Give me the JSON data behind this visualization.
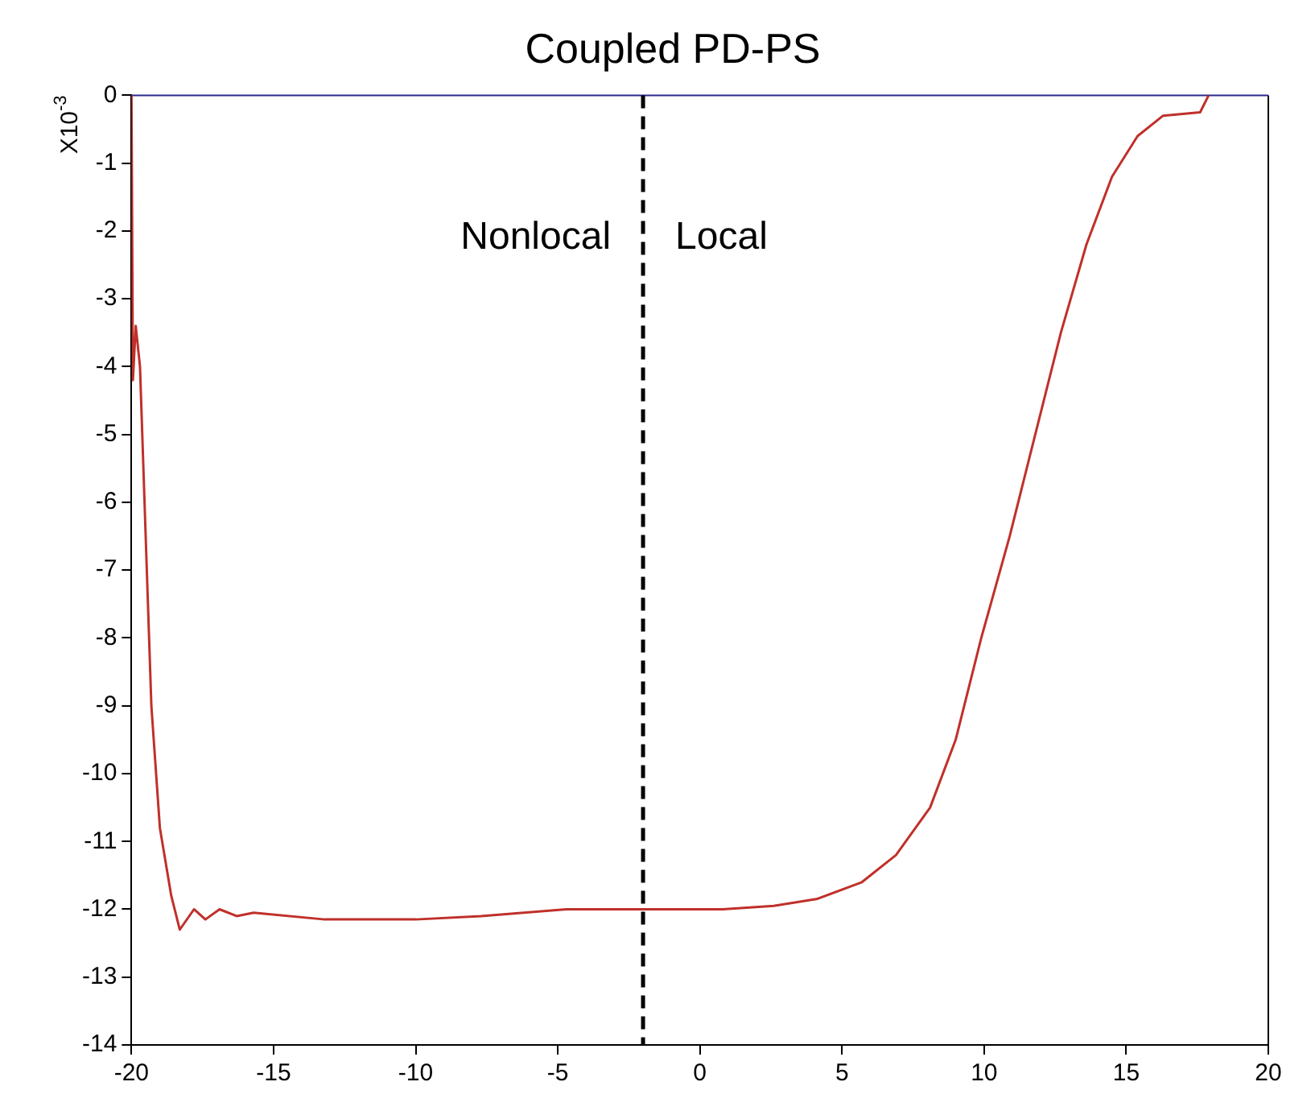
{
  "chart_data": {
    "type": "line",
    "title": "Coupled PD-PS",
    "ylabel": "X10$^{-3}$",
    "annotations": [
      "Nonlocal",
      "Local"
    ],
    "xlim": [
      -20,
      20
    ],
    "xticks": [
      -20,
      -15,
      -10,
      -5,
      0,
      5,
      10,
      15,
      20
    ],
    "ylim": [
      -14,
      0
    ],
    "yticks": [
      0,
      -1,
      -2,
      -3,
      -4,
      -5,
      -6,
      -7,
      -8,
      -9,
      -10,
      -11,
      -12,
      -13,
      -14
    ],
    "grid": false,
    "legend": false,
    "marker": "none",
    "line_style": "solid",
    "ref_lines": [
      {
        "axis": "x",
        "value": -2,
        "color": "#000000",
        "line_style": "dashed"
      }
    ],
    "series": [
      {
        "color": "#c0302a",
        "x": [
          -20,
          -19.95,
          -19.85,
          -19.7,
          -19.5,
          -19.3,
          -19.0,
          -18.6,
          -18.3,
          -17.8,
          -17.4,
          -16.9,
          -16.3,
          -15.7,
          -13.2,
          -10,
          -7.7,
          -4.7,
          -2,
          0.8,
          2.6,
          4.1,
          5.7,
          6.9,
          8.1,
          9.0,
          9.9,
          10.9,
          11.8,
          12.7,
          13.6,
          14.5,
          15.4,
          16.3,
          17.6,
          17.9
        ],
        "values": [
          0,
          -4.2,
          -3.4,
          -4.0,
          -6.5,
          -9.0,
          -10.8,
          -11.8,
          -12.3,
          -12.0,
          -12.15,
          -12.0,
          -12.1,
          -12.05,
          -12.15,
          -12.15,
          -12.1,
          -12.0,
          -12.0,
          -12.0,
          -11.95,
          -11.85,
          -11.6,
          -11.2,
          -10.5,
          -9.5,
          -8.0,
          -6.5,
          -5.0,
          -3.5,
          -2.2,
          -1.2,
          -0.6,
          -0.3,
          -0.25,
          0
        ]
      }
    ]
  }
}
